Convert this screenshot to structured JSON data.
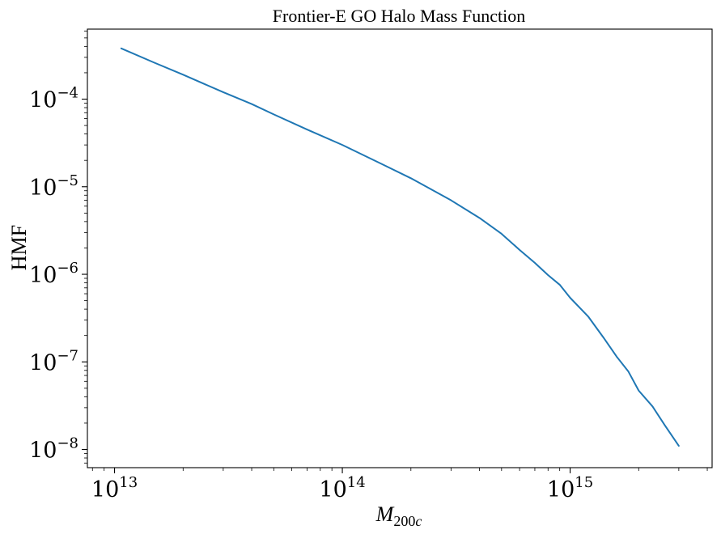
{
  "chart_data": {
    "type": "line",
    "title": "Frontier-E GO Halo Mass Function",
    "xlabel": "M200c",
    "ylabel": "HMF",
    "xscale": "log",
    "yscale": "log",
    "xlim": [
      7600000000000.0,
      4200000000000000.0
    ],
    "ylim": [
      6.2e-09,
      0.00063
    ],
    "grid": false,
    "legend": "none",
    "x_ticks": [
      {
        "base": "10",
        "exp": "13",
        "value": 10000000000000.0
      },
      {
        "base": "10",
        "exp": "14",
        "value": 100000000000000.0
      },
      {
        "base": "10",
        "exp": "15",
        "value": 1000000000000000.0
      }
    ],
    "y_ticks": [
      {
        "base": "10",
        "exp": "−8",
        "value": 1e-08
      },
      {
        "base": "10",
        "exp": "−7",
        "value": 1e-07
      },
      {
        "base": "10",
        "exp": "−6",
        "value": 1e-06
      },
      {
        "base": "10",
        "exp": "−5",
        "value": 1e-05
      },
      {
        "base": "10",
        "exp": "−4",
        "value": 0.0001
      }
    ],
    "series": [
      {
        "color": "#1f77b4",
        "x": [
          10700000000000.0,
          15000000000000.0,
          20000000000000.0,
          30000000000000.0,
          40000000000000.0,
          50000000000000.0,
          70000000000000.0,
          100000000000000.0,
          150000000000000.0,
          200000000000000.0,
          300000000000000.0,
          400000000000000.0,
          500000000000000.0,
          600000000000000.0,
          700000000000000.0,
          800000000000000.0,
          900000000000000.0,
          1000000000000000.0,
          1200000000000000.0,
          1400000000000000.0,
          1600000000000000.0,
          1800000000000000.0,
          2000000000000000.0,
          2300000000000000.0,
          2600000000000000.0,
          3000000000000000.0
        ],
        "y": [
          0.00038,
          0.00026,
          0.00019,
          0.00012,
          8.8e-05,
          6.7e-05,
          4.5e-05,
          3e-05,
          1.8e-05,
          1.25e-05,
          7e-06,
          4.4e-06,
          2.9e-06,
          1.9e-06,
          1.35e-06,
          9.8e-07,
          7.6e-07,
          5.4e-07,
          3.3e-07,
          1.9e-07,
          1.15e-07,
          7.8e-08,
          4.7e-08,
          3.1e-08,
          1.9e-08,
          1.1e-08
        ]
      }
    ]
  }
}
